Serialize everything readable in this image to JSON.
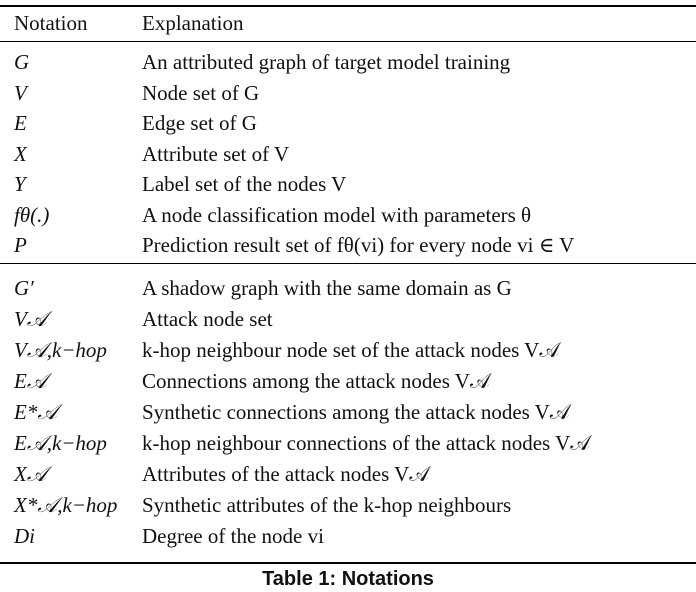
{
  "header": {
    "notation": "Notation",
    "explanation": "Explanation"
  },
  "rows_group1": [
    {
      "symbol": "G",
      "explanation": "An attributed graph of target model training"
    },
    {
      "symbol": "V",
      "explanation": "Node set of G"
    },
    {
      "symbol": "E",
      "explanation": "Edge set of G"
    },
    {
      "symbol": "X",
      "explanation": "Attribute set of V"
    },
    {
      "symbol": "Y",
      "explanation": "Label set of the nodes V"
    },
    {
      "symbol": "fθ(.)",
      "explanation": "A node classification model with parameters θ"
    },
    {
      "symbol": "P",
      "explanation": "Prediction result set of fθ(vi) for every node vi ∈ V"
    }
  ],
  "rows_group2": [
    {
      "symbol": "G′",
      "explanation": "A shadow graph with the same domain as G"
    },
    {
      "symbol": "V𝒜",
      "explanation": "Attack node set"
    },
    {
      "symbol": "V𝒜,k−hop",
      "explanation": "k-hop neighbour node set of the attack nodes V𝒜"
    },
    {
      "symbol": "E𝒜",
      "explanation": "Connections among the attack nodes V𝒜"
    },
    {
      "symbol": "E*𝒜",
      "explanation": "Synthetic connections among the attack nodes V𝒜"
    },
    {
      "symbol": "E𝒜,k−hop",
      "explanation": "k-hop neighbour connections of the attack nodes V𝒜"
    },
    {
      "symbol": "X𝒜",
      "explanation": "Attributes of the attack nodes V𝒜"
    },
    {
      "symbol": "X*𝒜,k−hop",
      "explanation": "Synthetic attributes of the k-hop neighbours"
    },
    {
      "symbol": "Di",
      "explanation": "Degree of the node vi"
    }
  ],
  "caption": "Table 1: Notations"
}
